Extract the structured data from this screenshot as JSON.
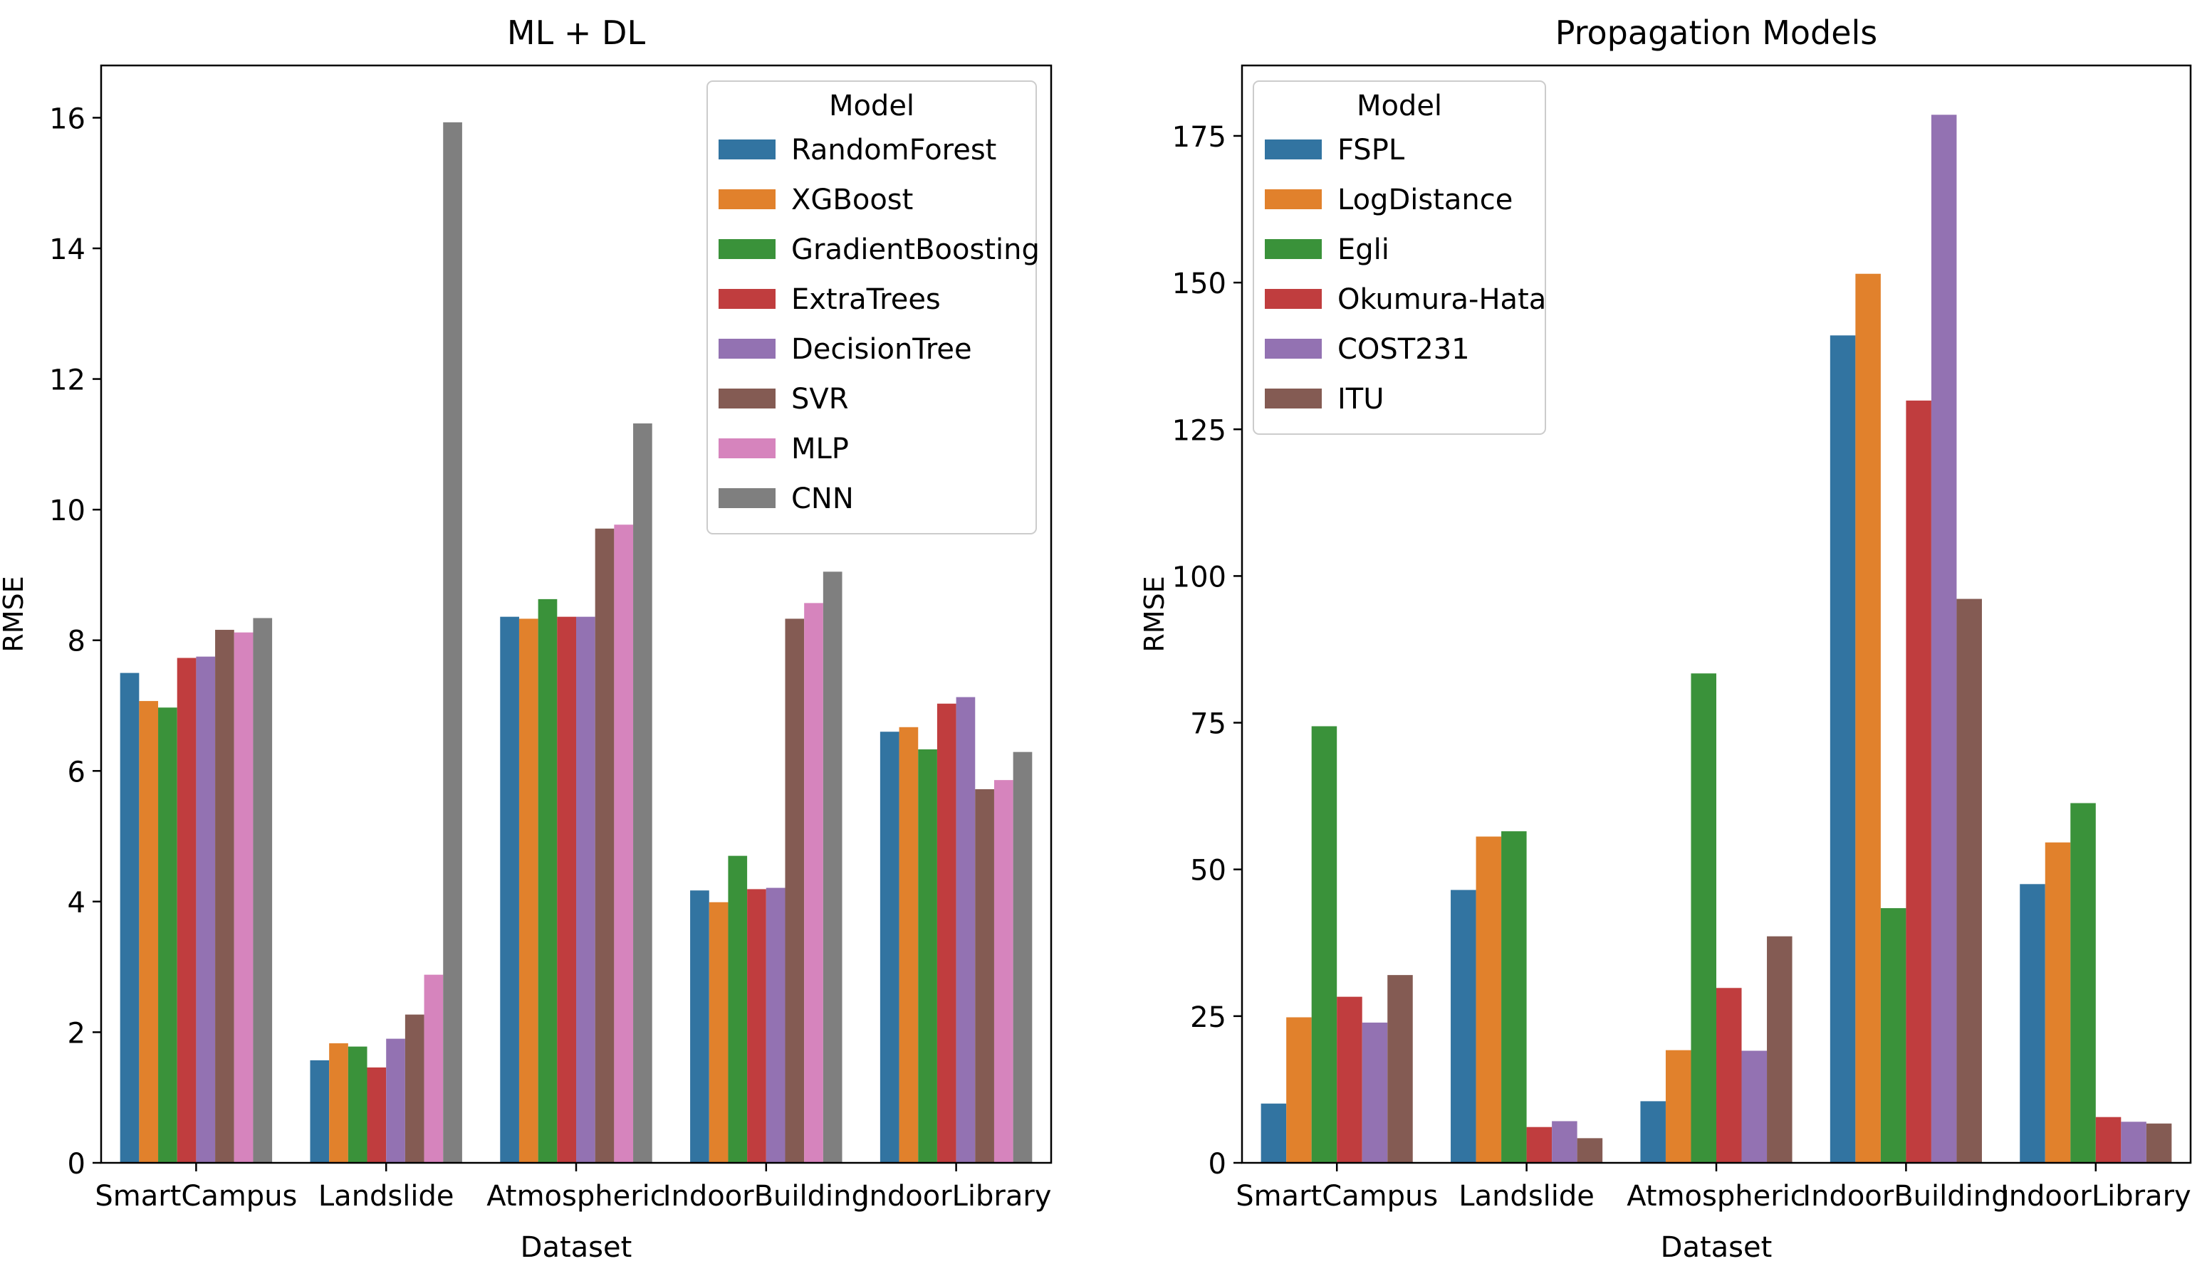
{
  "chart_data": [
    {
      "type": "bar",
      "title": "ML + DL",
      "xlabel": "Dataset",
      "ylabel": "RMSE",
      "ylim": [
        0,
        16.8
      ],
      "yticks": [
        0,
        2,
        4,
        6,
        8,
        10,
        12,
        14,
        16
      ],
      "categories": [
        "SmartCampus",
        "Landslide",
        "Atmospheric",
        "IndoorBuilding",
        "IndoorLibrary"
      ],
      "legend": {
        "title": "Model",
        "placement": "top-right"
      },
      "grid": false,
      "series": [
        {
          "name": "RandomForest",
          "color": "#3274a1",
          "values": [
            7.5,
            1.57,
            8.36,
            4.17,
            6.6
          ]
        },
        {
          "name": "XGBoost",
          "color": "#e1812c",
          "values": [
            7.07,
            1.83,
            8.33,
            3.99,
            6.67
          ]
        },
        {
          "name": "GradientBoosting",
          "color": "#3a923a",
          "values": [
            6.97,
            1.78,
            8.63,
            4.7,
            6.33
          ]
        },
        {
          "name": "ExtraTrees",
          "color": "#c03d3e",
          "values": [
            7.73,
            1.46,
            8.36,
            4.19,
            7.03
          ]
        },
        {
          "name": "DecisionTree",
          "color": "#9372b2",
          "values": [
            7.75,
            1.9,
            8.36,
            4.21,
            7.13
          ]
        },
        {
          "name": "SVR",
          "color": "#845b53",
          "values": [
            8.16,
            2.27,
            9.71,
            8.33,
            5.72
          ]
        },
        {
          "name": "MLP",
          "color": "#d684bd",
          "values": [
            8.12,
            2.88,
            9.77,
            8.57,
            5.86
          ]
        },
        {
          "name": "CNN",
          "color": "#7f7f7f",
          "values": [
            8.34,
            15.93,
            11.32,
            9.05,
            6.29
          ]
        }
      ]
    },
    {
      "type": "bar",
      "title": "Propagation Models",
      "xlabel": "Dataset",
      "ylabel": "RMSE",
      "ylim": [
        0,
        187
      ],
      "yticks": [
        0,
        25,
        50,
        75,
        100,
        125,
        150,
        175
      ],
      "categories": [
        "SmartCampus",
        "Landslide",
        "Atmospheric",
        "IndoorBuilding",
        "IndoorLibrary"
      ],
      "legend": {
        "title": "Model",
        "placement": "top-left"
      },
      "grid": false,
      "series": [
        {
          "name": "FSPL",
          "color": "#3274a1",
          "values": [
            10.1,
            46.5,
            10.5,
            141,
            47.5
          ]
        },
        {
          "name": "LogDistance",
          "color": "#e1812c",
          "values": [
            24.8,
            55.6,
            19.2,
            151.5,
            54.6
          ]
        },
        {
          "name": "Egli",
          "color": "#3a923a",
          "values": [
            74.4,
            56.5,
            83.4,
            43.4,
            61.3
          ]
        },
        {
          "name": "Okumura-Hata",
          "color": "#c03d3e",
          "values": [
            28.3,
            6.1,
            29.8,
            129.9,
            7.8
          ]
        },
        {
          "name": "COST231",
          "color": "#9372b2",
          "values": [
            23.9,
            7.1,
            19.1,
            178.6,
            7
          ]
        },
        {
          "name": "ITU",
          "color": "#845b53",
          "values": [
            32,
            4.2,
            38.6,
            96.1,
            6.7
          ]
        }
      ]
    }
  ]
}
